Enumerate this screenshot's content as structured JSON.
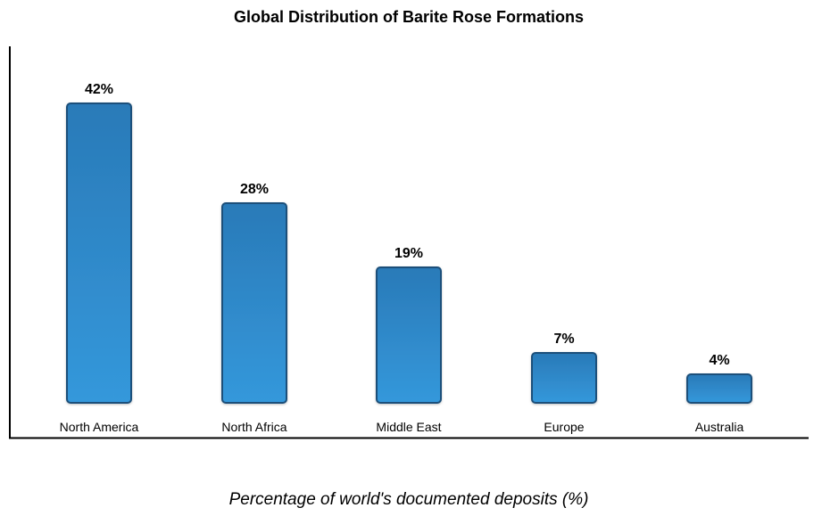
{
  "chart_data": {
    "type": "bar",
    "title": "Global Distribution of Barite Rose Formations",
    "xlabel": "Percentage of world's documented deposits (%)",
    "ylabel": "",
    "categories": [
      "North America",
      "North Africa",
      "Middle East",
      "Europe",
      "Australia"
    ],
    "values": [
      42,
      28,
      19,
      7,
      4
    ],
    "value_labels": [
      "42%",
      "28%",
      "19%",
      "7%",
      "4%"
    ],
    "ylim": [
      0,
      45
    ],
    "grid": false,
    "legend": "none",
    "colors": {
      "bar_top": "#2a7ab8",
      "bar_bottom": "#3498db",
      "bar_border": "#1a4f7a",
      "axis": "#000000"
    }
  }
}
